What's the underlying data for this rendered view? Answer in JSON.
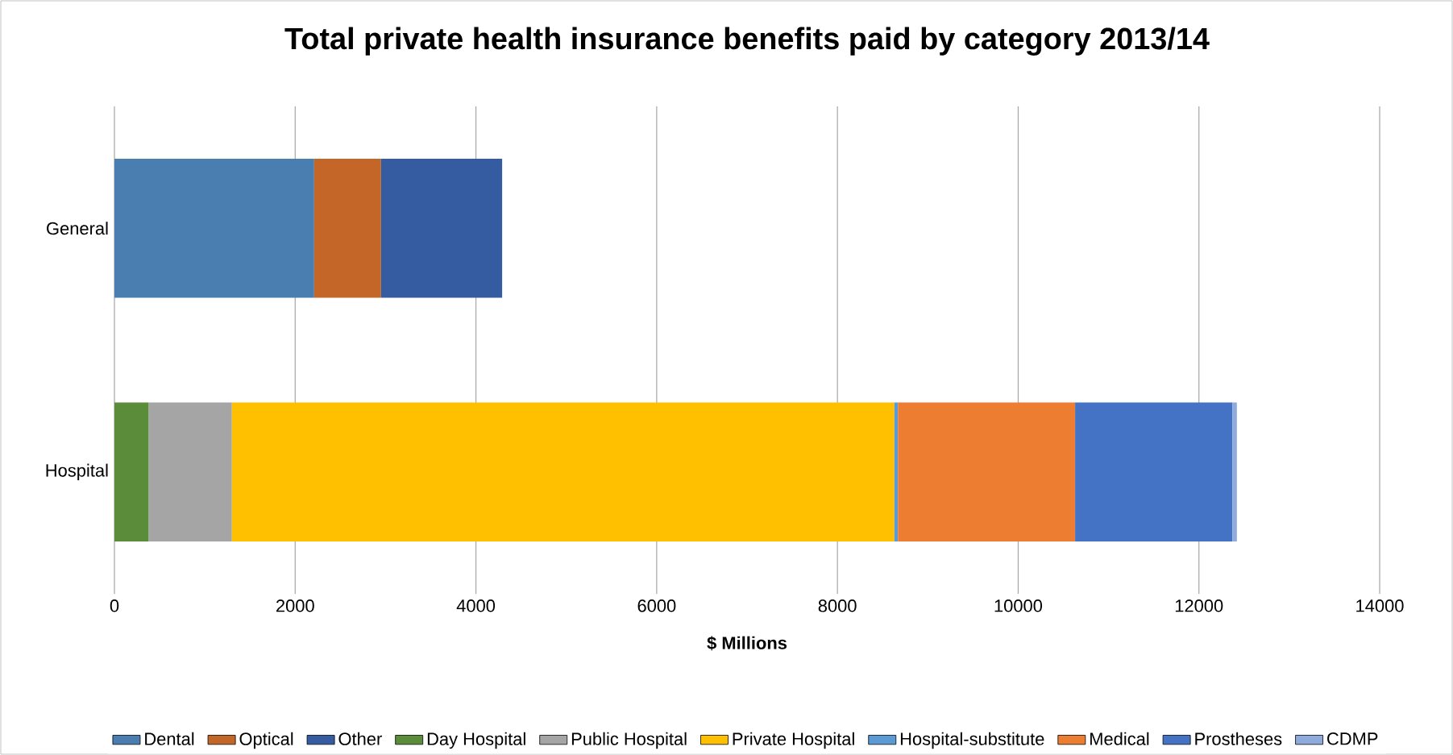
{
  "chart_data": {
    "type": "bar",
    "orientation": "horizontal",
    "stacked": true,
    "title": "Total private health insurance benefits paid by category 2013/14",
    "xlabel": "$ Millions",
    "categories": [
      "General",
      "Hospital"
    ],
    "series": [
      {
        "name": "Dental",
        "color": "#4a7eb0",
        "values": [
          2210,
          null
        ]
      },
      {
        "name": "Optical",
        "color": "#c46627",
        "values": [
          740,
          null
        ]
      },
      {
        "name": "Other",
        "color": "#355ca0",
        "values": [
          1340,
          null
        ]
      },
      {
        "name": "Day Hospital",
        "color": "#5b8c3a",
        "values": [
          null,
          380
        ]
      },
      {
        "name": "Public Hospital",
        "color": "#a5a5a5",
        "values": [
          null,
          920
        ]
      },
      {
        "name": "Private Hospital",
        "color": "#ffc000",
        "values": [
          null,
          7330
        ]
      },
      {
        "name": "Hospital-substitute",
        "color": "#5b9bd5",
        "values": [
          null,
          40
        ]
      },
      {
        "name": "Medical",
        "color": "#ed7d31",
        "values": [
          null,
          1960
        ]
      },
      {
        "name": "Prostheses",
        "color": "#4472c4",
        "values": [
          null,
          1740
        ]
      },
      {
        "name": "CDMP",
        "color": "#8faadc",
        "values": [
          null,
          50
        ]
      }
    ],
    "xlim": [
      0,
      14000
    ],
    "xticks": [
      0,
      2000,
      4000,
      6000,
      8000,
      10000,
      12000,
      14000
    ],
    "grid": "x",
    "legend": "bottom"
  }
}
